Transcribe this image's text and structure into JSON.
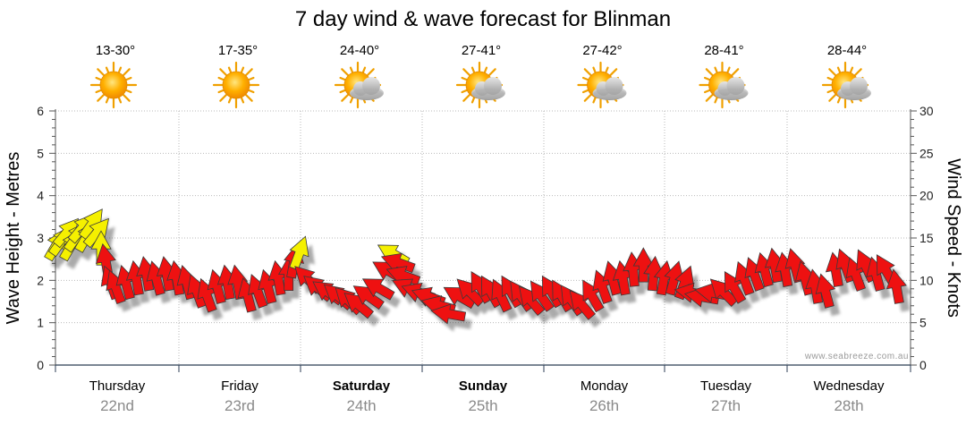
{
  "chart_data": {
    "type": "scatter",
    "title": "7 day wind & wave forecast for Blinman",
    "ylabel_left": "Wave Height - Metres",
    "ylabel_right": "Wind Speed - Knots",
    "ylim_left": [
      0,
      6
    ],
    "ylim_right": [
      0,
      30
    ],
    "left_ticks": [
      "0",
      "1",
      "2",
      "3",
      "4",
      "5",
      "6"
    ],
    "right_ticks": [
      "0",
      "5",
      "10",
      "15",
      "20",
      "25",
      "30"
    ],
    "grid": true,
    "credit": "www.seabreeze.com.au",
    "days": [
      {
        "name": "Thursday",
        "date": "22nd",
        "temp": "13-30°",
        "icon": "sun-icon",
        "bold": false
      },
      {
        "name": "Friday",
        "date": "23rd",
        "temp": "17-35°",
        "icon": "sun-icon",
        "bold": false
      },
      {
        "name": "Saturday",
        "date": "24th",
        "temp": "24-40°",
        "icon": "sun-cloud-icon",
        "bold": true
      },
      {
        "name": "Sunday",
        "date": "25th",
        "temp": "27-41°",
        "icon": "sun-cloud-icon",
        "bold": true
      },
      {
        "name": "Monday",
        "date": "26th",
        "temp": "27-42°",
        "icon": "sun-cloud-icon",
        "bold": false
      },
      {
        "name": "Tuesday",
        "date": "27th",
        "temp": "28-41°",
        "icon": "sun-cloud-icon",
        "bold": false
      },
      {
        "name": "Wednesday",
        "date": "28th",
        "temp": "28-44°",
        "icon": "sun-cloud-icon",
        "bold": false
      }
    ],
    "series": [
      {
        "name": "Wind",
        "x_unit": "hours from Thursday 22nd 00:00",
        "colors": {
          "strong": "#ee1111",
          "light": "#f5f000"
        },
        "points": [
          {
            "h": 0,
            "kts": 14.0,
            "dir": 120
          },
          {
            "h": 1,
            "kts": 14.5,
            "dir": 125
          },
          {
            "h": 2,
            "kts": 15.5,
            "dir": 130
          },
          {
            "h": 3,
            "kts": 14.0,
            "dir": 120
          },
          {
            "h": 4,
            "kts": 15.0,
            "dir": 125
          },
          {
            "h": 5,
            "kts": 16.0,
            "dir": 130
          },
          {
            "h": 6,
            "kts": 15.0,
            "dir": 120
          },
          {
            "h": 7,
            "kts": 16.5,
            "dir": 125
          },
          {
            "h": 8,
            "kts": 15.5,
            "dir": 130
          },
          {
            "h": 9,
            "kts": 13.5,
            "dir": 90
          },
          {
            "h": 10,
            "kts": 12.0,
            "dir": 80
          },
          {
            "h": 11,
            "kts": 9.5,
            "dir": 70
          },
          {
            "h": 12,
            "kts": 9.0,
            "dir": 70
          },
          {
            "h": 14,
            "kts": 9.5,
            "dir": 75
          },
          {
            "h": 16,
            "kts": 10.0,
            "dir": 80
          },
          {
            "h": 18,
            "kts": 10.5,
            "dir": 80
          },
          {
            "h": 20,
            "kts": 10.0,
            "dir": 75
          },
          {
            "h": 22,
            "kts": 10.5,
            "dir": 80
          },
          {
            "h": 24,
            "kts": 10.0,
            "dir": 80
          },
          {
            "h": 26,
            "kts": 9.5,
            "dir": 75
          },
          {
            "h": 28,
            "kts": 8.5,
            "dir": 70
          },
          {
            "h": 30,
            "kts": 8.0,
            "dir": 70
          },
          {
            "h": 32,
            "kts": 9.0,
            "dir": 75
          },
          {
            "h": 34,
            "kts": 9.5,
            "dir": 80
          },
          {
            "h": 36,
            "kts": 9.5,
            "dir": 80
          },
          {
            "h": 38,
            "kts": 8.0,
            "dir": 75
          },
          {
            "h": 40,
            "kts": 8.5,
            "dir": 70
          },
          {
            "h": 42,
            "kts": 9.0,
            "dir": 75
          },
          {
            "h": 44,
            "kts": 10.0,
            "dir": 80
          },
          {
            "h": 46,
            "kts": 10.5,
            "dir": 90
          },
          {
            "h": 47,
            "kts": 12.0,
            "dir": 100
          },
          {
            "h": 48,
            "kts": 13.0,
            "dir": 110
          },
          {
            "h": 50,
            "kts": 10.0,
            "dir": 45
          },
          {
            "h": 52,
            "kts": 9.0,
            "dir": 40
          },
          {
            "h": 54,
            "kts": 8.5,
            "dir": 35
          },
          {
            "h": 56,
            "kts": 8.0,
            "dir": 40
          },
          {
            "h": 58,
            "kts": 7.5,
            "dir": 45
          },
          {
            "h": 60,
            "kts": 7.0,
            "dir": 40
          },
          {
            "h": 62,
            "kts": 8.0,
            "dir": 35
          },
          {
            "h": 64,
            "kts": 9.0,
            "dir": 30
          },
          {
            "h": 66,
            "kts": 11.0,
            "dir": 30
          },
          {
            "h": 67,
            "kts": 13.0,
            "dir": 30
          },
          {
            "h": 68,
            "kts": 12.0,
            "dir": 20
          },
          {
            "h": 69,
            "kts": 10.5,
            "dir": 20
          },
          {
            "h": 70,
            "kts": 9.0,
            "dir": 25
          },
          {
            "h": 72,
            "kts": 8.5,
            "dir": 20
          },
          {
            "h": 74,
            "kts": 8.0,
            "dir": 20
          },
          {
            "h": 76,
            "kts": 7.0,
            "dir": 15
          },
          {
            "h": 78,
            "kts": 6.0,
            "dir": 10
          },
          {
            "h": 80,
            "kts": 8.0,
            "dir": 30
          },
          {
            "h": 82,
            "kts": 8.5,
            "dir": 45
          },
          {
            "h": 84,
            "kts": 9.0,
            "dir": 60
          },
          {
            "h": 86,
            "kts": 8.5,
            "dir": 60
          },
          {
            "h": 88,
            "kts": 8.0,
            "dir": 65
          },
          {
            "h": 90,
            "kts": 8.5,
            "dir": 60
          },
          {
            "h": 92,
            "kts": 8.0,
            "dir": 55
          },
          {
            "h": 94,
            "kts": 7.5,
            "dir": 50
          },
          {
            "h": 96,
            "kts": 8.0,
            "dir": 55
          },
          {
            "h": 98,
            "kts": 8.5,
            "dir": 60
          },
          {
            "h": 100,
            "kts": 8.0,
            "dir": 60
          },
          {
            "h": 102,
            "kts": 7.5,
            "dir": 55
          },
          {
            "h": 104,
            "kts": 7.0,
            "dir": 50
          },
          {
            "h": 106,
            "kts": 8.0,
            "dir": 60
          },
          {
            "h": 108,
            "kts": 9.0,
            "dir": 70
          },
          {
            "h": 110,
            "kts": 10.0,
            "dir": 75
          },
          {
            "h": 112,
            "kts": 10.0,
            "dir": 80
          },
          {
            "h": 114,
            "kts": 11.0,
            "dir": 85
          },
          {
            "h": 116,
            "kts": 11.5,
            "dir": 90
          },
          {
            "h": 118,
            "kts": 10.5,
            "dir": 95
          },
          {
            "h": 120,
            "kts": 10.0,
            "dir": 100
          },
          {
            "h": 122,
            "kts": 10.0,
            "dir": 105
          },
          {
            "h": 124,
            "kts": 9.5,
            "dir": 110
          },
          {
            "h": 126,
            "kts": 8.5,
            "dir": 10
          },
          {
            "h": 128,
            "kts": 8.0,
            "dir": 10
          },
          {
            "h": 130,
            "kts": 8.5,
            "dir": 10
          },
          {
            "h": 132,
            "kts": 8.5,
            "dir": 45
          },
          {
            "h": 134,
            "kts": 9.0,
            "dir": 60
          },
          {
            "h": 136,
            "kts": 10.0,
            "dir": 70
          },
          {
            "h": 138,
            "kts": 10.5,
            "dir": 70
          },
          {
            "h": 140,
            "kts": 11.0,
            "dir": 75
          },
          {
            "h": 142,
            "kts": 11.5,
            "dir": 80
          },
          {
            "h": 144,
            "kts": 11.0,
            "dir": 80
          },
          {
            "h": 146,
            "kts": 11.5,
            "dir": 75
          },
          {
            "h": 148,
            "kts": 10.0,
            "dir": 75
          },
          {
            "h": 150,
            "kts": 9.0,
            "dir": 80
          },
          {
            "h": 152,
            "kts": 8.5,
            "dir": 75
          },
          {
            "h": 154,
            "kts": 11.0,
            "dir": 80
          },
          {
            "h": 156,
            "kts": 11.5,
            "dir": 70
          },
          {
            "h": 158,
            "kts": 10.5,
            "dir": 70
          },
          {
            "h": 160,
            "kts": 11.5,
            "dir": 65
          },
          {
            "h": 162,
            "kts": 10.5,
            "dir": 75
          },
          {
            "h": 164,
            "kts": 11.0,
            "dir": 60
          },
          {
            "h": 166,
            "kts": 9.0,
            "dir": 80
          }
        ]
      }
    ]
  }
}
